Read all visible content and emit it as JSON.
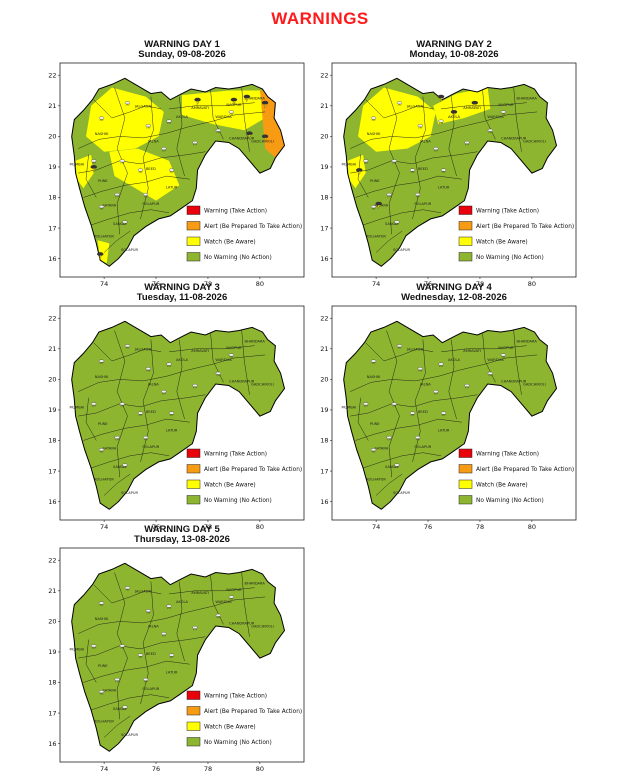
{
  "page_title": "WARNINGS",
  "legend": [
    {
      "label": "Warning (Take Action)",
      "color": "#e8000b"
    },
    {
      "label": "Alert (Be Prepared To Take Action)",
      "color": "#f79b12"
    },
    {
      "label": "Watch (Be Aware)",
      "color": "#ffff00"
    },
    {
      "label": "No Warning (No Action)",
      "color": "#8db52f"
    }
  ],
  "colors": {
    "no_warning": "#8db52f",
    "watch": "#ffff00",
    "alert": "#f79b12",
    "warning": "#e8000b"
  },
  "x_ticks": [
    "74",
    "76",
    "78",
    "80"
  ],
  "y_ticks": [
    "16",
    "17",
    "18",
    "19",
    "20",
    "21",
    "22"
  ],
  "map_labels": [
    "MUMBAI",
    "JALGAON",
    "NASHIK",
    "PUNE",
    "KOLHAPUR",
    "SATARA",
    "NAGPUR",
    "AMRAVATI",
    "CHANDRAPUR",
    "GADCHIROLI",
    "BHANDARA",
    "JALNA",
    "BEED",
    "LATUR",
    "SOLAPUR",
    "AKOLA",
    "WARDHA",
    "SANGLI"
  ],
  "sub_label": "SOLAPUR",
  "icons": {
    "rain": "rain-icon",
    "thunder": "thunderstorm-icon"
  },
  "days": [
    {
      "title": "WARNING DAY 1",
      "date": "Sunday, 09-08-2026",
      "zones": [
        {
          "level": "watch",
          "region": "north-maharashtra"
        },
        {
          "level": "watch",
          "region": "central-maharashtra"
        },
        {
          "level": "watch",
          "region": "north-konkan"
        },
        {
          "level": "watch",
          "region": "south-konkan"
        },
        {
          "level": "watch",
          "region": "vidarbha"
        },
        {
          "level": "alert",
          "region": "east-vidarbha"
        }
      ]
    },
    {
      "title": "WARNING DAY 2",
      "date": "Monday, 10-08-2026",
      "zones": [
        {
          "level": "watch",
          "region": "north-maharashtra"
        },
        {
          "level": "watch",
          "region": "west-vidarbha"
        },
        {
          "level": "watch",
          "region": "north-konkan"
        }
      ]
    },
    {
      "title": "WARNING DAY 3",
      "date": "Tuesday, 11-08-2026",
      "zones": []
    },
    {
      "title": "WARNING DAY 4",
      "date": "Wednesday, 12-08-2026",
      "zones": []
    },
    {
      "title": "WARNING DAY 5",
      "date": "Thursday, 13-08-2026",
      "zones": []
    }
  ]
}
